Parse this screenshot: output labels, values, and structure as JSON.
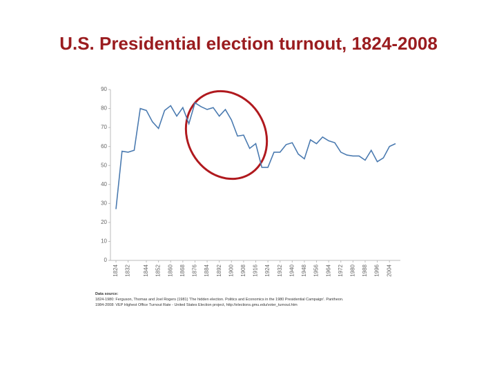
{
  "chart_data": {
    "type": "line",
    "title": "U.S. Presidential election turnout, 1824-2008",
    "x": [
      1824,
      1828,
      1832,
      1836,
      1840,
      1844,
      1848,
      1852,
      1856,
      1860,
      1864,
      1868,
      1872,
      1876,
      1880,
      1884,
      1888,
      1892,
      1896,
      1900,
      1904,
      1908,
      1912,
      1916,
      1920,
      1924,
      1928,
      1932,
      1936,
      1940,
      1944,
      1948,
      1952,
      1956,
      1960,
      1964,
      1968,
      1972,
      1976,
      1980,
      1984,
      1988,
      1992,
      1996,
      2000,
      2004,
      2008
    ],
    "series": [
      {
        "name": "Turnout",
        "color": "#4a7ab0",
        "values": [
          27,
          57.5,
          57,
          58,
          80,
          79,
          73,
          69.5,
          79,
          81.5,
          76,
          80.5,
          72,
          83,
          81,
          79.5,
          80.5,
          76,
          79.5,
          74,
          65.5,
          66,
          59,
          61.5,
          49,
          49,
          57,
          57,
          61,
          62,
          56,
          53.5,
          63.5,
          61.5,
          65,
          63,
          62,
          57,
          55.5,
          55,
          55,
          52.8,
          58,
          52,
          54,
          60,
          61.5
        ]
      }
    ],
    "xlim": [
      1824,
      2008
    ],
    "xticks": [
      1824,
      1832,
      1844,
      1852,
      1860,
      1868,
      1876,
      1884,
      1892,
      1900,
      1908,
      1916,
      1924,
      1932,
      1940,
      1948,
      1956,
      1964,
      1972,
      1980,
      1988,
      1996,
      2004
    ],
    "ylim": [
      0,
      90
    ],
    "yticks": [
      0,
      10,
      20,
      30,
      40,
      50,
      60,
      70,
      80,
      90
    ],
    "source": [
      "Data source:",
      "1824-1980: Ferguson, Thomas and Joel Rogers (1981) 'The hidden election. Politics and Economics in the 1980 Presidential Campaign'. Pantheon.",
      "1984-2008: VEP Highest Office Turnout Rate - United States Election project, http://elections.gmu.edu/voter_turnout.htm"
    ]
  }
}
